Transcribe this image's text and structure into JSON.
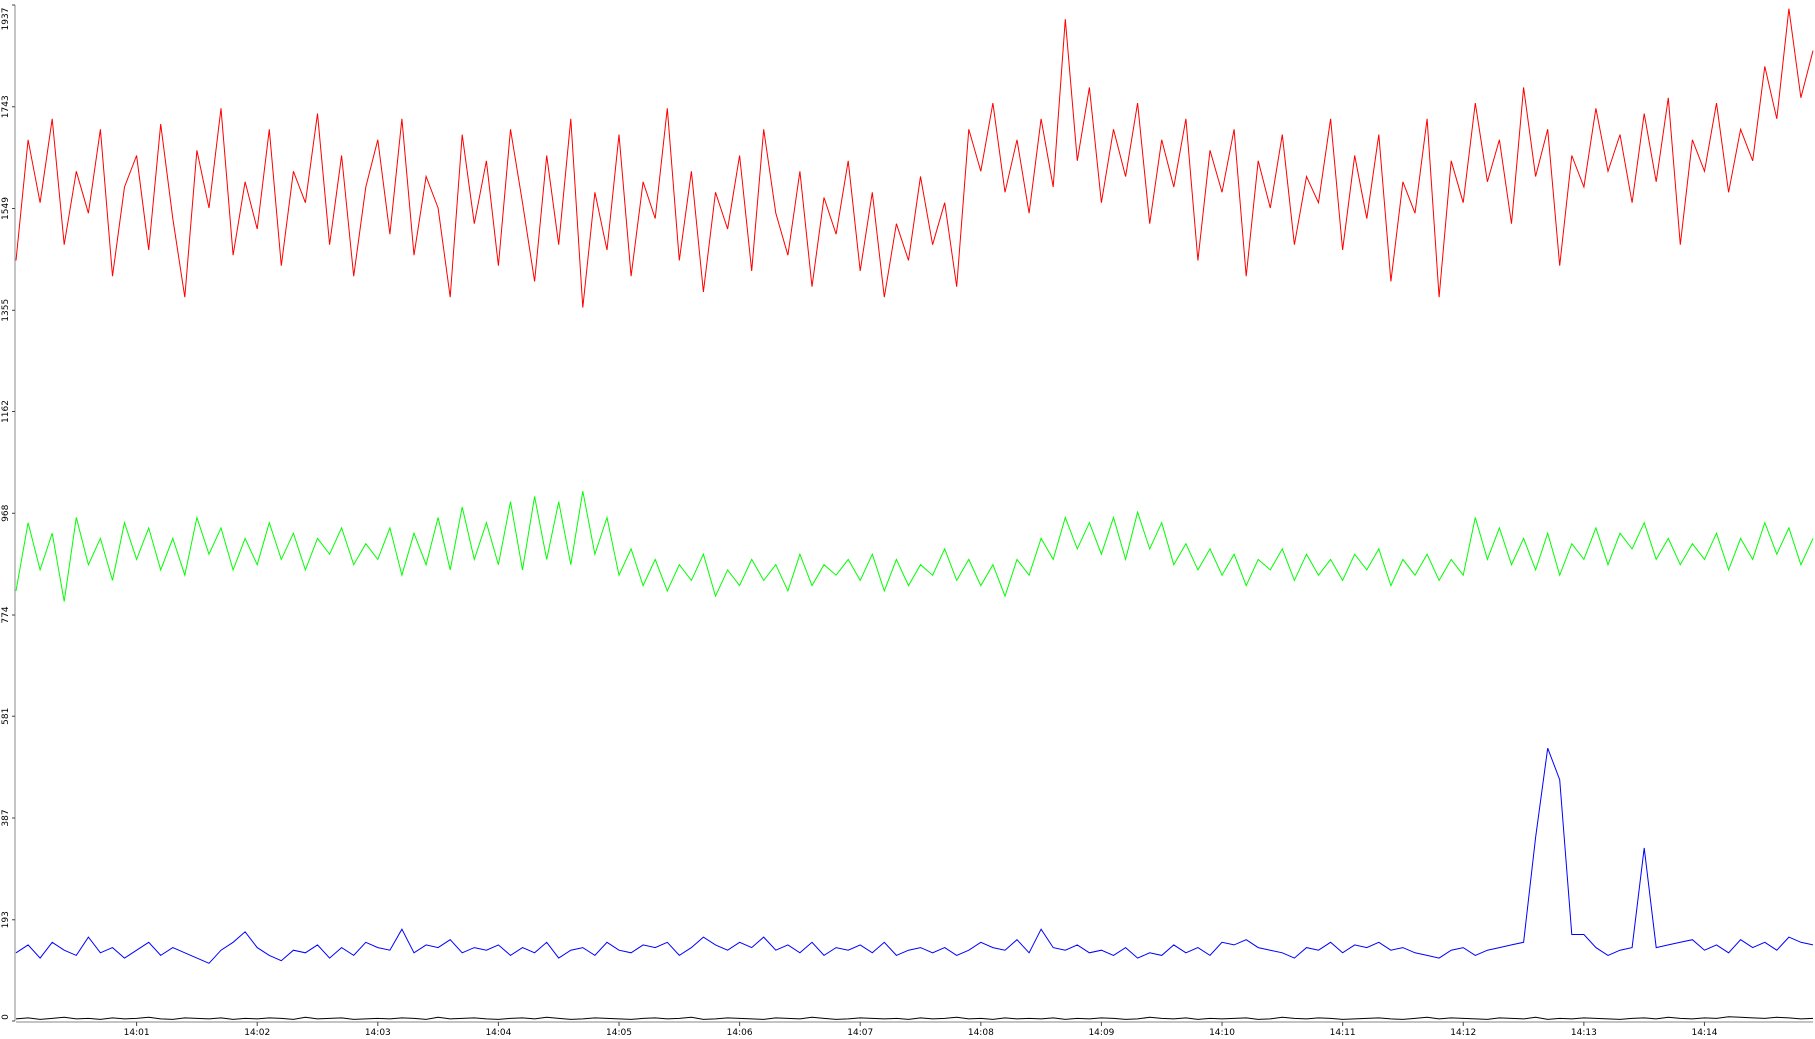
{
  "chart_data": {
    "type": "line",
    "categories": [
      null,
      null,
      null,
      null,
      null,
      null,
      null,
      null,
      null,
      null,
      "14:01",
      null,
      null,
      null,
      null,
      null,
      null,
      null,
      null,
      null,
      "14:02",
      null,
      null,
      null,
      null,
      null,
      null,
      null,
      null,
      null,
      "14:03",
      null,
      null,
      null,
      null,
      null,
      null,
      null,
      null,
      null,
      "14:04",
      null,
      null,
      null,
      null,
      null,
      null,
      null,
      null,
      null,
      "14:05",
      null,
      null,
      null,
      null,
      null,
      null,
      null,
      null,
      null,
      "14:06",
      null,
      null,
      null,
      null,
      null,
      null,
      null,
      null,
      null,
      "14:07",
      null,
      null,
      null,
      null,
      null,
      null,
      null,
      null,
      null,
      "14:08",
      null,
      null,
      null,
      null,
      null,
      null,
      null,
      null,
      null,
      "14:09",
      null,
      null,
      null,
      null,
      null,
      null,
      null,
      null,
      null,
      "14:10",
      null,
      null,
      null,
      null,
      null,
      null,
      null,
      null,
      null,
      "14:11",
      null,
      null,
      null,
      null,
      null,
      null,
      null,
      null,
      null,
      "14:12",
      null,
      null,
      null,
      null,
      null,
      null,
      null,
      null,
      null,
      "14:13",
      null,
      null,
      null,
      null,
      null,
      null,
      null,
      null,
      null,
      "14:14",
      null,
      null,
      null,
      null,
      null,
      null,
      null,
      null,
      null
    ],
    "ylim": [
      0,
      1937
    ],
    "yticks": [
      0,
      193,
      387,
      581,
      774,
      968,
      1162,
      1355,
      1549,
      1743,
      1937
    ],
    "series": [
      {
        "color": "#ff0000",
        "values": [
          1450,
          1680,
          1560,
          1720,
          1480,
          1620,
          1540,
          1700,
          1420,
          1590,
          1650,
          1470,
          1710,
          1530,
          1380,
          1660,
          1550,
          1740,
          1460,
          1600,
          1510,
          1700,
          1440,
          1620,
          1560,
          1730,
          1480,
          1650,
          1420,
          1590,
          1680,
          1500,
          1720,
          1460,
          1610,
          1550,
          1380,
          1690,
          1520,
          1640,
          1440,
          1700,
          1560,
          1410,
          1650,
          1480,
          1720,
          1360,
          1580,
          1470,
          1690,
          1420,
          1600,
          1530,
          1740,
          1450,
          1620,
          1390,
          1580,
          1510,
          1650,
          1430,
          1700,
          1540,
          1460,
          1620,
          1400,
          1570,
          1500,
          1640,
          1430,
          1580,
          1380,
          1520,
          1450,
          1610,
          1480,
          1560,
          1400,
          1700,
          1620,
          1750,
          1580,
          1680,
          1540,
          1720,
          1590,
          1910,
          1640,
          1780,
          1560,
          1700,
          1610,
          1750,
          1520,
          1680,
          1590,
          1720,
          1450,
          1660,
          1580,
          1700,
          1420,
          1640,
          1550,
          1690,
          1480,
          1610,
          1560,
          1720,
          1470,
          1650,
          1530,
          1690,
          1410,
          1600,
          1540,
          1720,
          1380,
          1640,
          1560,
          1750,
          1600,
          1680,
          1520,
          1780,
          1610,
          1700,
          1440,
          1650,
          1590,
          1740,
          1620,
          1690,
          1560,
          1730,
          1600,
          1760,
          1480,
          1680,
          1620,
          1750,
          1580,
          1700,
          1640,
          1820,
          1720,
          1930,
          1760,
          1850
        ]
      },
      {
        "color": "#00ff00",
        "values": [
          820,
          950,
          860,
          930,
          800,
          960,
          870,
          920,
          840,
          950,
          880,
          940,
          860,
          920,
          850,
          960,
          890,
          940,
          860,
          920,
          870,
          950,
          880,
          930,
          860,
          920,
          890,
          940,
          870,
          910,
          880,
          940,
          850,
          930,
          870,
          960,
          860,
          980,
          880,
          950,
          870,
          990,
          860,
          1000,
          880,
          990,
          870,
          1010,
          890,
          960,
          850,
          900,
          830,
          880,
          820,
          870,
          840,
          890,
          810,
          860,
          830,
          880,
          840,
          870,
          820,
          890,
          830,
          870,
          850,
          880,
          840,
          890,
          820,
          880,
          830,
          870,
          850,
          900,
          840,
          880,
          830,
          870,
          810,
          880,
          850,
          920,
          880,
          960,
          900,
          950,
          890,
          960,
          880,
          970,
          900,
          950,
          870,
          910,
          860,
          900,
          850,
          890,
          830,
          880,
          860,
          900,
          840,
          890,
          850,
          880,
          840,
          890,
          860,
          900,
          830,
          880,
          850,
          890,
          840,
          880,
          850,
          960,
          880,
          940,
          870,
          920,
          860,
          930,
          850,
          910,
          880,
          940,
          870,
          930,
          900,
          950,
          880,
          920,
          870,
          910,
          880,
          930,
          860,
          920,
          880,
          950,
          890,
          940,
          870,
          920
        ]
      },
      {
        "color": "#0000ff",
        "values": [
          130,
          145,
          120,
          150,
          135,
          125,
          160,
          130,
          140,
          120,
          135,
          150,
          125,
          140,
          130,
          120,
          110,
          135,
          150,
          170,
          140,
          125,
          115,
          135,
          130,
          145,
          120,
          140,
          125,
          150,
          140,
          135,
          175,
          130,
          145,
          140,
          155,
          130,
          140,
          135,
          145,
          125,
          140,
          130,
          150,
          120,
          135,
          140,
          125,
          150,
          135,
          130,
          145,
          140,
          150,
          125,
          140,
          160,
          145,
          135,
          150,
          140,
          160,
          135,
          145,
          130,
          150,
          125,
          140,
          135,
          145,
          130,
          150,
          125,
          135,
          140,
          130,
          140,
          125,
          135,
          150,
          140,
          135,
          155,
          130,
          175,
          140,
          135,
          145,
          130,
          135,
          125,
          140,
          120,
          130,
          125,
          145,
          130,
          140,
          125,
          150,
          145,
          155,
          140,
          135,
          130,
          120,
          140,
          135,
          150,
          130,
          145,
          140,
          150,
          135,
          140,
          130,
          125,
          120,
          135,
          140,
          125,
          135,
          140,
          145,
          150,
          350,
          520,
          460,
          165,
          165,
          140,
          125,
          135,
          140,
          330,
          140,
          145,
          150,
          155,
          135,
          145,
          130,
          155,
          140,
          150,
          135,
          160,
          150,
          145
        ]
      },
      {
        "color": "#000000",
        "values": [
          4,
          6,
          3,
          5,
          7,
          4,
          5,
          3,
          6,
          4,
          5,
          7,
          4,
          3,
          6,
          5,
          4,
          6,
          3,
          5,
          4,
          6,
          5,
          3,
          7,
          4,
          5,
          6,
          3,
          4,
          5,
          4,
          6,
          5,
          3,
          7,
          4,
          5,
          6,
          4,
          3,
          5,
          6,
          4,
          7,
          5,
          3,
          4,
          6,
          5,
          4,
          3,
          5,
          6,
          4,
          5,
          7,
          3,
          4,
          6,
          5,
          4,
          3,
          6,
          5,
          4,
          7,
          5,
          3,
          4,
          6,
          5,
          4,
          5,
          3,
          6,
          4,
          5,
          7,
          4,
          5,
          3,
          6,
          4,
          5,
          4,
          6,
          3,
          5,
          4,
          6,
          5,
          3,
          4,
          7,
          5,
          4,
          6,
          3,
          5,
          4,
          5,
          6,
          3,
          4,
          7,
          5,
          4,
          6,
          5,
          3,
          4,
          5,
          6,
          4,
          3,
          5,
          7,
          4,
          6,
          5,
          4,
          3,
          6,
          5,
          4,
          7,
          3,
          5,
          4,
          6,
          5,
          4,
          3,
          5,
          6,
          4,
          7,
          5,
          4,
          6,
          5,
          8,
          7,
          6,
          5,
          7,
          6,
          4,
          5
        ]
      }
    ]
  }
}
